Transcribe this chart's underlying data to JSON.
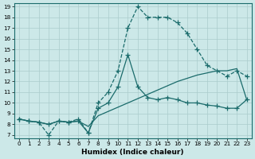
{
  "xlabel": "Humidex (Indice chaleur)",
  "bg_color": "#cce8e8",
  "grid_color": "#aacccc",
  "line_color": "#1a6b6b",
  "xlim": [
    -0.5,
    23.5
  ],
  "ylim": [
    6.7,
    19.3
  ],
  "xticks": [
    0,
    1,
    2,
    3,
    4,
    5,
    6,
    7,
    8,
    9,
    10,
    11,
    12,
    13,
    14,
    15,
    16,
    17,
    18,
    19,
    20,
    21,
    22,
    23
  ],
  "yticks": [
    7,
    8,
    9,
    10,
    11,
    12,
    13,
    14,
    15,
    16,
    17,
    18,
    19
  ],
  "series": [
    {
      "x": [
        0,
        1,
        2,
        3,
        4,
        5,
        6,
        7,
        8,
        9,
        10,
        11,
        12,
        13,
        14,
        15,
        16,
        17,
        18,
        19,
        20,
        21,
        22,
        23
      ],
      "y": [
        8.5,
        8.3,
        8.2,
        7.0,
        8.3,
        8.2,
        8.5,
        7.2,
        10.0,
        11.0,
        13.0,
        17.0,
        19.0,
        18.0,
        18.0,
        18.0,
        17.5,
        16.5,
        15.0,
        13.5,
        13.0,
        12.5,
        13.0,
        12.5
      ],
      "marker": "+",
      "linestyle": "--",
      "linewidth": 0.9,
      "markersize": 4
    },
    {
      "x": [
        0,
        1,
        2,
        3,
        4,
        5,
        6,
        7,
        8,
        9,
        10,
        11,
        12,
        13,
        14,
        15,
        16,
        17,
        18,
        19,
        20,
        21,
        22,
        23
      ],
      "y": [
        8.5,
        8.3,
        8.2,
        8.0,
        8.3,
        8.2,
        8.3,
        7.2,
        9.5,
        10.0,
        11.5,
        14.5,
        11.5,
        10.5,
        10.3,
        10.5,
        10.3,
        10.0,
        10.0,
        9.8,
        9.7,
        9.5,
        9.5,
        10.3
      ],
      "marker": "+",
      "linestyle": "-",
      "linewidth": 0.9,
      "markersize": 4
    },
    {
      "x": [
        0,
        1,
        2,
        3,
        4,
        5,
        6,
        7,
        8,
        9,
        10,
        11,
        12,
        13,
        14,
        15,
        16,
        17,
        18,
        19,
        20,
        21,
        22,
        23
      ],
      "y": [
        8.5,
        8.3,
        8.2,
        8.0,
        8.3,
        8.2,
        8.3,
        7.8,
        8.8,
        9.2,
        9.6,
        10.0,
        10.4,
        10.8,
        11.2,
        11.6,
        12.0,
        12.3,
        12.6,
        12.8,
        13.0,
        13.0,
        13.2,
        10.3
      ],
      "marker": null,
      "linestyle": "-",
      "linewidth": 0.9,
      "markersize": 0
    }
  ]
}
